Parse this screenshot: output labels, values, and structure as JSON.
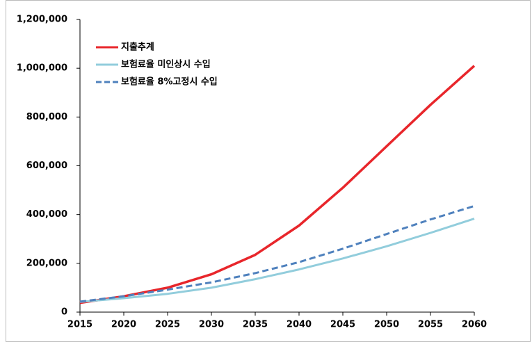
{
  "chart_data": {
    "type": "line",
    "x": [
      2015,
      2020,
      2025,
      2030,
      2035,
      2040,
      2045,
      2050,
      2055,
      2060
    ],
    "series": [
      {
        "name": "지출추계",
        "color": "#e8262b",
        "dash": false,
        "values": [
          38000,
          65000,
          100000,
          155000,
          235000,
          355000,
          510000,
          680000,
          850000,
          1010000
        ]
      },
      {
        "name": "보험료율 미인상시 수입",
        "color": "#92cddc",
        "dash": false,
        "values": [
          42000,
          57000,
          75000,
          100000,
          135000,
          175000,
          220000,
          270000,
          325000,
          383000
        ]
      },
      {
        "name": "보험료율 8%고정시 수입",
        "color": "#4f81bd",
        "dash": true,
        "values": [
          43000,
          65000,
          92000,
          122000,
          160000,
          205000,
          260000,
          320000,
          380000,
          435000
        ]
      }
    ],
    "xlim": [
      2015,
      2060
    ],
    "xticks": [
      2015,
      2020,
      2025,
      2030,
      2035,
      2040,
      2045,
      2050,
      2055,
      2060
    ],
    "ylim": [
      0,
      1200000
    ],
    "yticks": [
      0,
      {
        "value": 200000,
        "label": "200,000"
      },
      {
        "value": 400000,
        "label": "400,000"
      },
      {
        "value": 600000,
        "label": "600,000"
      },
      {
        "value": 800000,
        "label": "800,000"
      },
      {
        "value": 1000000,
        "label": "1,000,000"
      },
      {
        "value": 1200000,
        "label": "1,200,000"
      }
    ],
    "grid": false,
    "legend": "upper left"
  }
}
